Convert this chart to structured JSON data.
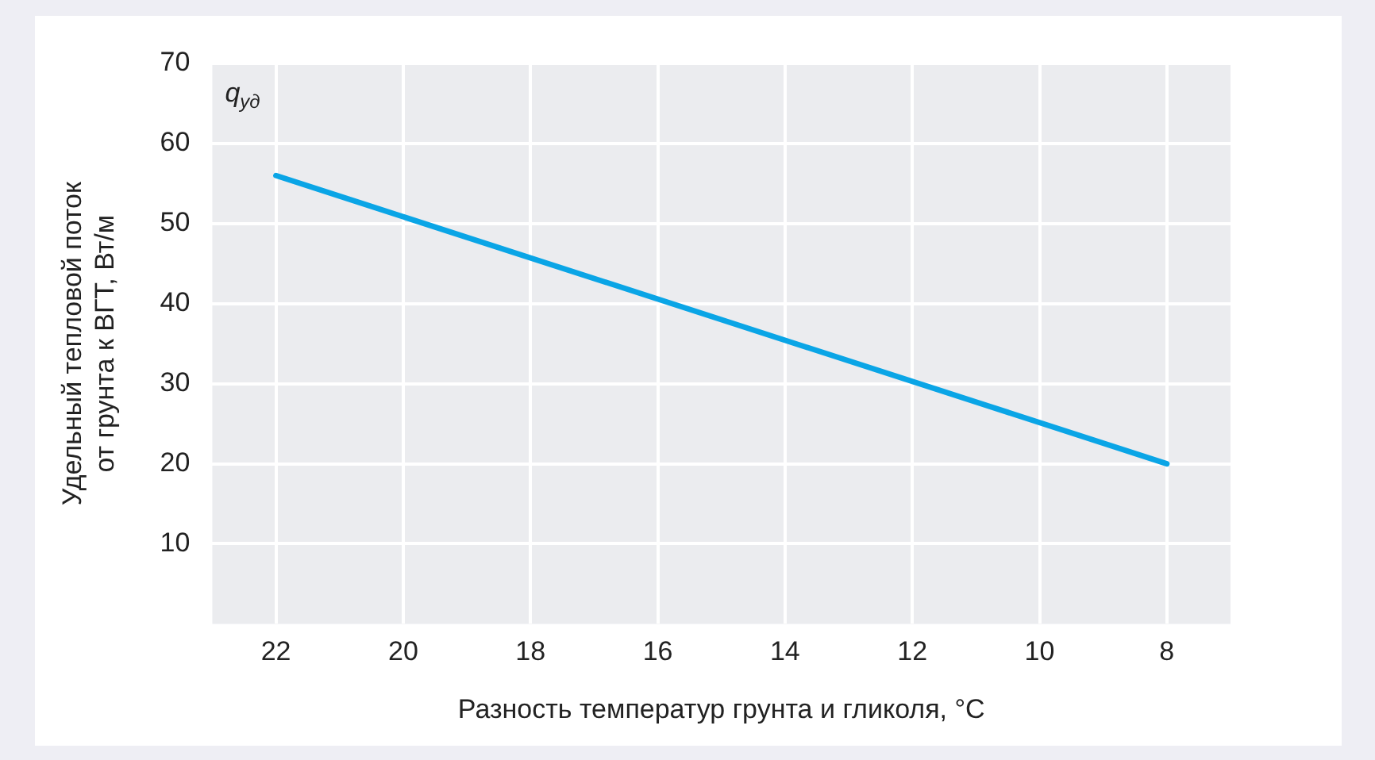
{
  "chart_data": {
    "type": "line",
    "xlabel": "Разность температур грунта и гликоля, °C",
    "ylabel": "Удельный тепловой поток от грунта к ВГТ, Вт/м",
    "annotations": [
      "q$_{уд}$"
    ],
    "x": [
      22,
      8
    ],
    "series": [
      {
        "color": "#0aa5e6",
        "values": [
          56,
          20
        ]
      }
    ],
    "xlim": [
      23,
      7
    ],
    "xticks": [
      22,
      20,
      18,
      16,
      14,
      12,
      10,
      8
    ],
    "ylim": [
      0,
      70
    ],
    "yticks": [
      10,
      20,
      30,
      40,
      50,
      60,
      70
    ],
    "grid": true,
    "legend": false,
    "marker": "none",
    "line_style": "solid"
  }
}
